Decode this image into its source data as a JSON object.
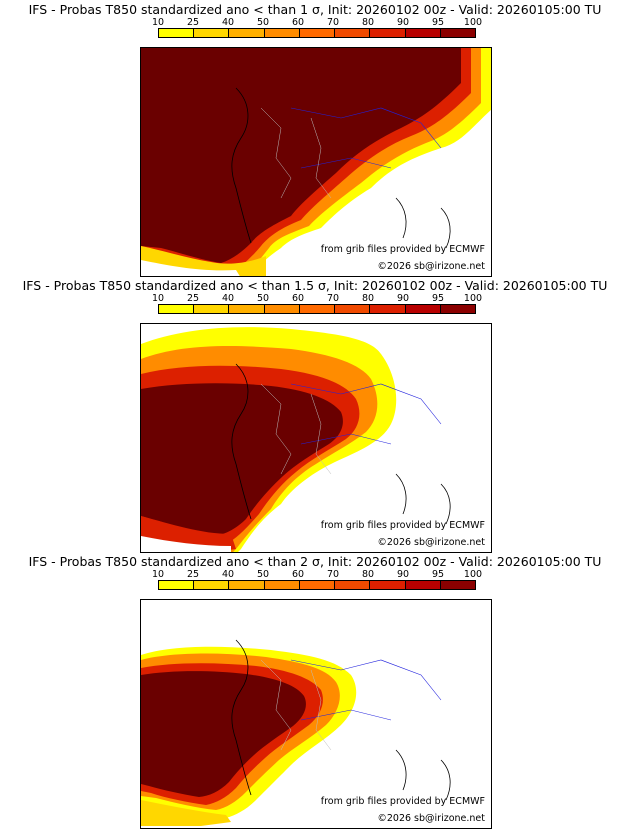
{
  "colorbar": {
    "ticks": [
      "10",
      "25",
      "40",
      "50",
      "60",
      "70",
      "80",
      "90",
      "95",
      "100"
    ],
    "colors": [
      "#ffff00",
      "#ffd700",
      "#ffb000",
      "#ff8c00",
      "#ff6a00",
      "#f04a00",
      "#dc2000",
      "#b80000",
      "#8b0000",
      "#6a0000"
    ]
  },
  "credits": {
    "source": "from grib files provided by ECMWF",
    "copyright": "©2026 sb@irizone.net"
  },
  "panels": [
    {
      "title": "IFS - Probas T850  standardized ano < than 1 σ, Init: 20260102 00z - Valid: 20260105:00 TU",
      "level": 1
    },
    {
      "title": "IFS - Probas T850  standardized ano < than 1.5 σ, Init: 20260102 00z - Valid: 20260105:00 TU",
      "level": 2
    },
    {
      "title": "IFS - Probas T850  standardized ano < than 2 σ, Init: 20260102 00z - Valid: 20260105:00 TU",
      "level": 3
    }
  ]
}
